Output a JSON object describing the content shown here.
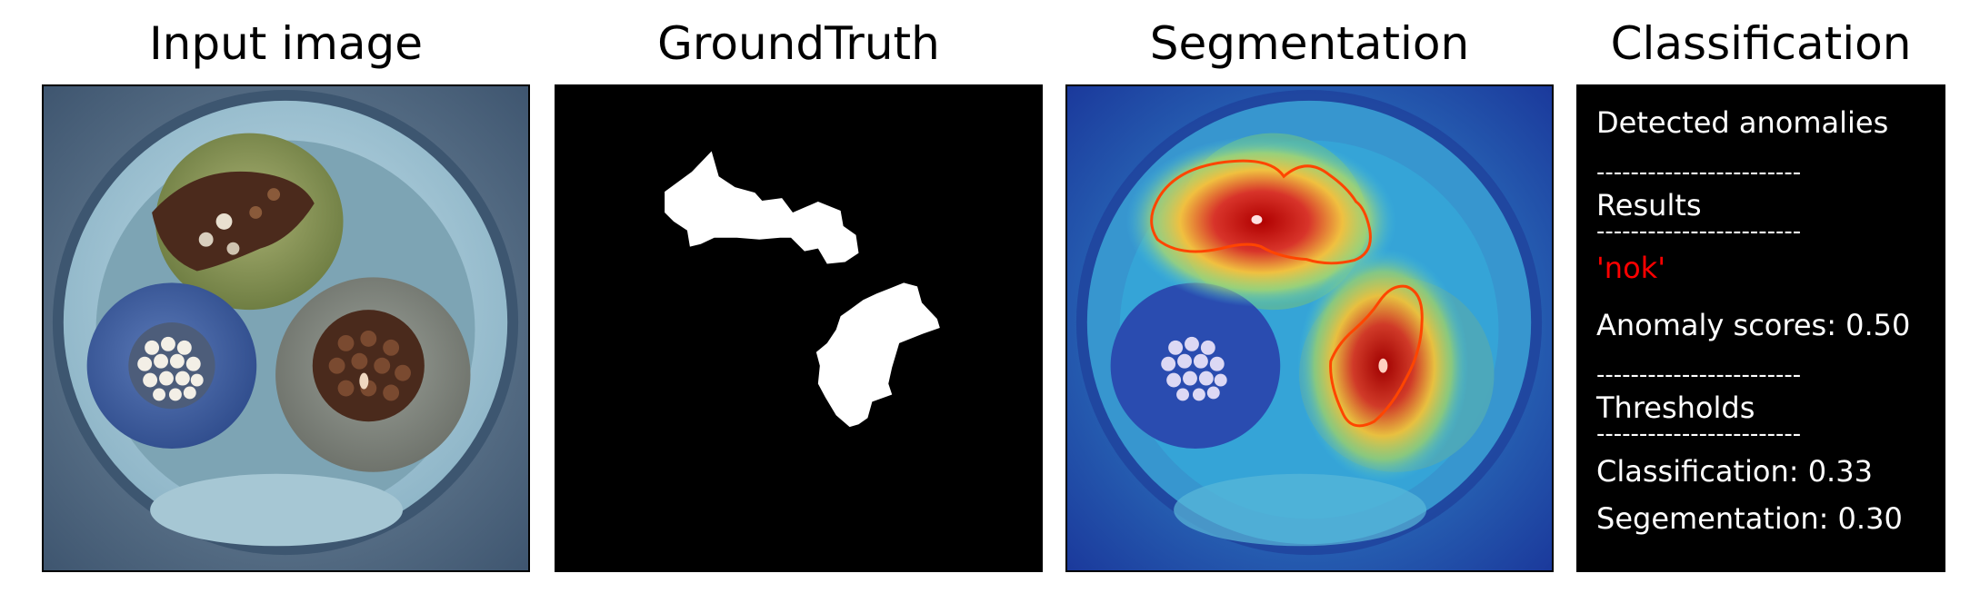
{
  "panels": {
    "input": {
      "title": "Input image",
      "icon": "cable-cross-section-image"
    },
    "ground_truth": {
      "title": "GroundTruth",
      "icon": "anomaly-mask-image"
    },
    "segmentation": {
      "title": "Segmentation",
      "icon": "heatmap-overlay-image"
    },
    "classification": {
      "title": "Classification"
    }
  },
  "classification": {
    "heading": "Detected anomalies",
    "separator": "------------------------",
    "results_label": "Results",
    "result_value": "'nok'",
    "anomaly_score": "Anomaly scores: 0.50",
    "thresholds_label": "Thresholds",
    "classification_threshold": "Classification: 0.33",
    "segmentation_threshold": "Segementation: 0.30"
  },
  "colors": {
    "result_nok": "#ff0000",
    "contour": "#ff4500",
    "panel_background": "#000000",
    "text_on_dark": "#ffffff"
  }
}
